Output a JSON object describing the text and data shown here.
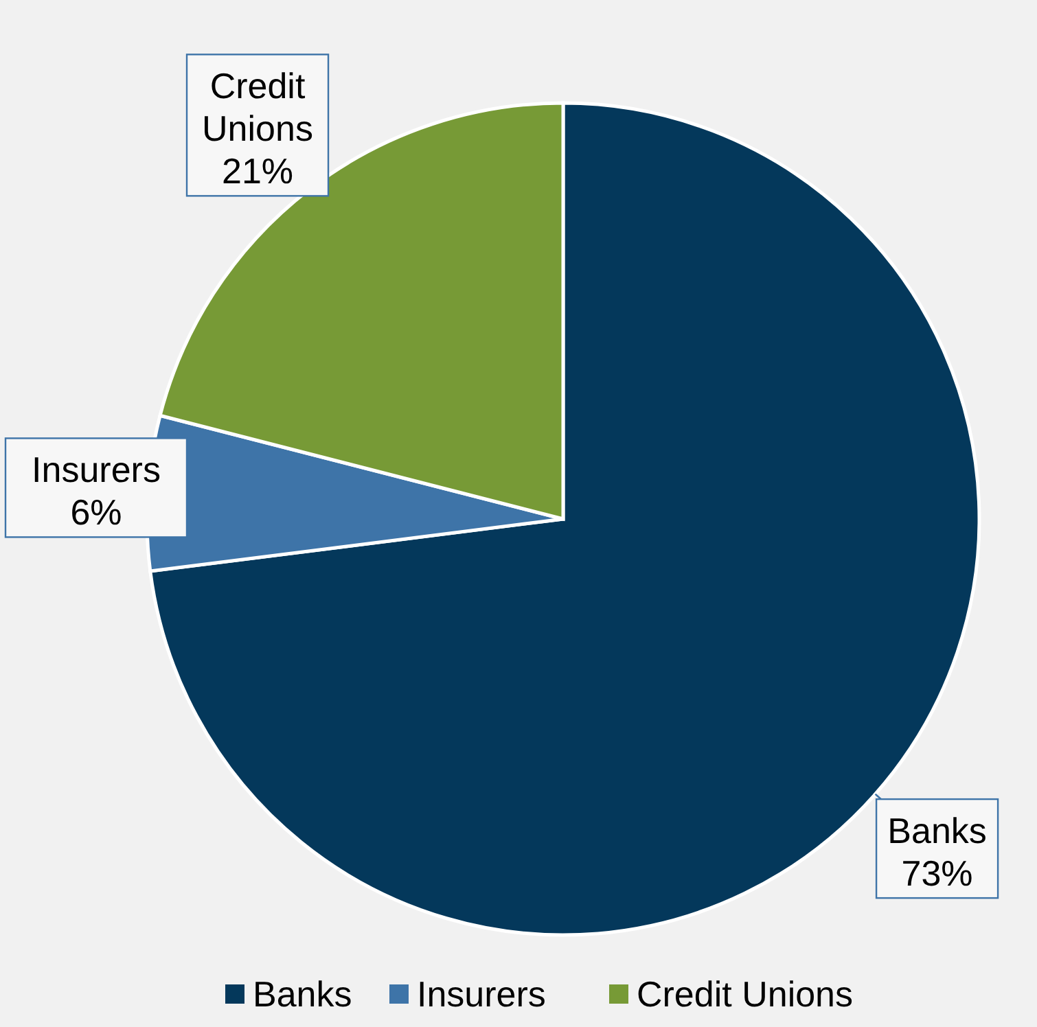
{
  "chart_data": {
    "type": "pie",
    "categories": [
      "Banks",
      "Insurers",
      "Credit Unions"
    ],
    "values": [
      73,
      6,
      21
    ],
    "colors": [
      "#04385b",
      "#3e74a8",
      "#779a36"
    ],
    "value_labels": [
      "73%",
      "6%",
      "21%"
    ],
    "legend": "bottom"
  }
}
